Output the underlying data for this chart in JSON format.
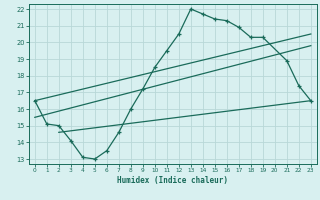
{
  "title": "",
  "xlabel": "Humidex (Indice chaleur)",
  "bg_color": "#d8f0f0",
  "grid_color": "#b8d8d8",
  "line_color": "#1a6b5a",
  "xlim": [
    -0.5,
    23.5
  ],
  "ylim": [
    12.7,
    22.3
  ],
  "xticks": [
    0,
    1,
    2,
    3,
    4,
    5,
    6,
    7,
    8,
    9,
    10,
    11,
    12,
    13,
    14,
    15,
    16,
    17,
    18,
    19,
    20,
    21,
    22,
    23
  ],
  "yticks": [
    13,
    14,
    15,
    16,
    17,
    18,
    19,
    20,
    21,
    22
  ],
  "series1_x": [
    0,
    1,
    2,
    3,
    4,
    5,
    6,
    7,
    8,
    9,
    10,
    11,
    12,
    13,
    14,
    15,
    16,
    17,
    18,
    19,
    21,
    22,
    23
  ],
  "series1_y": [
    16.5,
    15.1,
    15.0,
    14.1,
    13.1,
    13.0,
    13.5,
    14.6,
    16.0,
    17.2,
    18.5,
    19.5,
    20.5,
    22.0,
    21.7,
    21.4,
    21.3,
    20.9,
    20.3,
    20.3,
    18.9,
    17.4,
    16.5
  ],
  "line1_x": [
    0,
    23
  ],
  "line1_y": [
    16.5,
    20.5
  ],
  "line2_x": [
    0,
    23
  ],
  "line2_y": [
    15.5,
    19.8
  ],
  "line3_x": [
    2,
    23
  ],
  "line3_y": [
    14.6,
    16.5
  ]
}
